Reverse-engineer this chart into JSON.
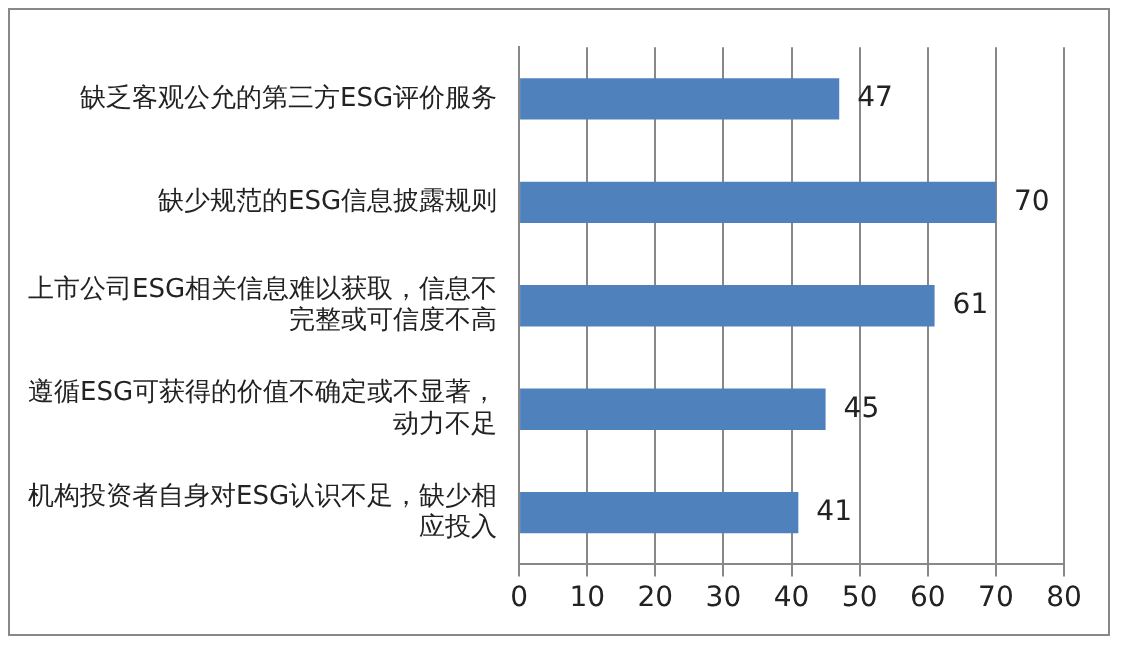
{
  "chart_data": {
    "type": "bar",
    "orientation": "horizontal",
    "categories": [
      "缺乏客观公允的第三方ESG评价服务",
      "缺少规范的ESG信息披露规则",
      "上市公司ESG相关信息难以获取，信息不完整或可信度不高",
      "遵循ESG可获得的价值不确定或不显著，动力不足",
      "机构投资者自身对ESG认识不足，缺少相应投入"
    ],
    "values": [
      47,
      70,
      61,
      45,
      41
    ],
    "color": "#4f81bd",
    "xlim": [
      0,
      80
    ],
    "xticks": [
      0,
      10,
      20,
      30,
      40,
      50,
      60,
      70,
      80
    ],
    "grid": "x",
    "data_labels": true,
    "legend": false
  }
}
